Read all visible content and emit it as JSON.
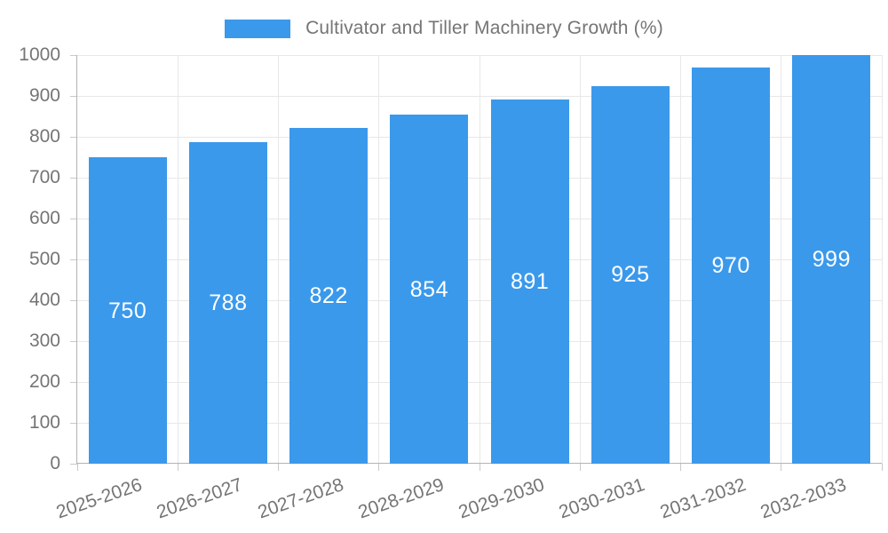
{
  "chart_data": {
    "type": "bar",
    "title": "Cultivator and Tiller Machinery Growth (%)",
    "categories": [
      "2025-2026",
      "2026-2027",
      "2027-2028",
      "2028-2029",
      "2029-2030",
      "2030-2031",
      "2031-2032",
      "2032-2033"
    ],
    "series": [
      {
        "name": "Cultivator and Tiller Machinery Growth (%)",
        "values": [
          750,
          788,
          822,
          854,
          891,
          925,
          970,
          999
        ]
      }
    ],
    "value_labels": [
      "750",
      "788",
      "822",
      "854",
      "891",
      "925",
      "970",
      "999"
    ],
    "value_label_position": "inside-center",
    "xlabel": "",
    "ylabel": "",
    "ylim": [
      0,
      1000
    ],
    "ytick_step": 100,
    "ytick_labels": [
      "0",
      "100",
      "200",
      "300",
      "400",
      "500",
      "600",
      "700",
      "800",
      "900",
      "1000"
    ],
    "grid": true,
    "legend_position": "top-center",
    "x_label_rotation_deg": -19,
    "colors": {
      "bar": "#3b99eb",
      "value_label": "#ffffff",
      "text": "#757575",
      "grid": "#e8e8e8",
      "axis": "#b3b3b3",
      "tick": "#c9c9c9",
      "background": "#ffffff"
    }
  }
}
